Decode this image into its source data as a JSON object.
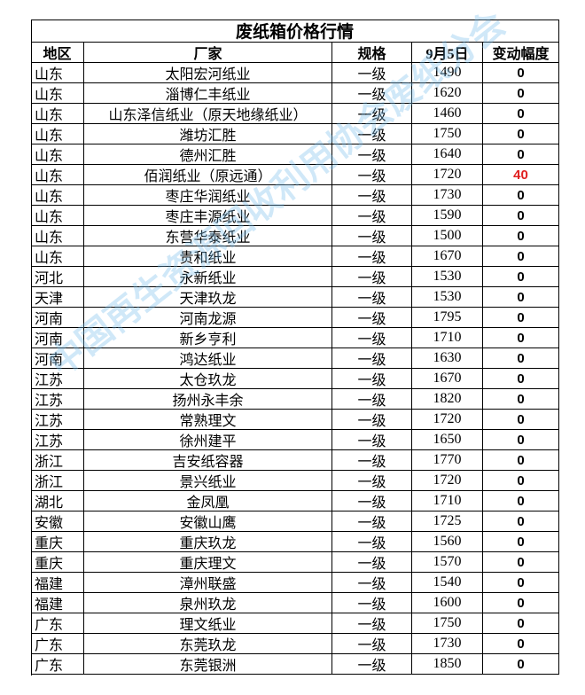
{
  "table": {
    "title": "废纸箱价格行情",
    "header": [
      "地区",
      "厂家",
      "规格",
      "9月5日",
      "变动幅度"
    ],
    "rows": [
      [
        "山东",
        "太阳宏河纸业",
        "一级",
        1490,
        0
      ],
      [
        "山东",
        "淄博仁丰纸业",
        "一级",
        1620,
        0
      ],
      [
        "山东",
        "山东泽信纸业（原天地缘纸业）",
        "一级",
        1460,
        0
      ],
      [
        "山东",
        "潍坊汇胜",
        "一级",
        1750,
        0
      ],
      [
        "山东",
        "德州汇胜",
        "一级",
        1640,
        0
      ],
      [
        "山东",
        "佰润纸业（原远通）",
        "一级",
        1720,
        40
      ],
      [
        "山东",
        "枣庄华润纸业",
        "一级",
        1730,
        0
      ],
      [
        "山东",
        "枣庄丰源纸业",
        "一级",
        1590,
        0
      ],
      [
        "山东",
        "东营华泰纸业",
        "一级",
        1500,
        0
      ],
      [
        "山东",
        "贵和纸业",
        "一级",
        1670,
        0
      ],
      [
        "河北",
        "永新纸业",
        "一级",
        1530,
        0
      ],
      [
        "天津",
        "天津玖龙",
        "一级",
        1530,
        0
      ],
      [
        "河南",
        "河南龙源",
        "一级",
        1795,
        0
      ],
      [
        "河南",
        "新乡亨利",
        "一级",
        1710,
        0
      ],
      [
        "河南",
        "鸿达纸业",
        "一级",
        1630,
        0
      ],
      [
        "江苏",
        "太仓玖龙",
        "一级",
        1670,
        0
      ],
      [
        "江苏",
        "扬州永丰余",
        "一级",
        1820,
        0
      ],
      [
        "江苏",
        "常熟理文",
        "一级",
        1720,
        0
      ],
      [
        "江苏",
        "徐州建平",
        "一级",
        1650,
        0
      ],
      [
        "浙江",
        "吉安纸容器",
        "一级",
        1770,
        0
      ],
      [
        "浙江",
        "景兴纸业",
        "一级",
        1720,
        0
      ],
      [
        "湖北",
        "金凤凰",
        "一级",
        1710,
        0
      ],
      [
        "安徽",
        "安徽山鹰",
        "一级",
        1725,
        0
      ],
      [
        "重庆",
        "重庆玖龙",
        "一级",
        1560,
        0
      ],
      [
        "重庆",
        "重庆理文",
        "一级",
        1570,
        0
      ],
      [
        "福建",
        "漳州联盛",
        "一级",
        1540,
        0
      ],
      [
        "福建",
        "泉州玖龙",
        "一级",
        1600,
        0
      ],
      [
        "广东",
        "理文纸业",
        "一级",
        1750,
        0
      ],
      [
        "广东",
        "东莞玖龙",
        "一级",
        1730,
        0
      ],
      [
        "广东",
        "东莞银洲",
        "一级",
        1850,
        0
      ]
    ]
  },
  "watermark": "中国再生资源回收利用协会废纸分会"
}
